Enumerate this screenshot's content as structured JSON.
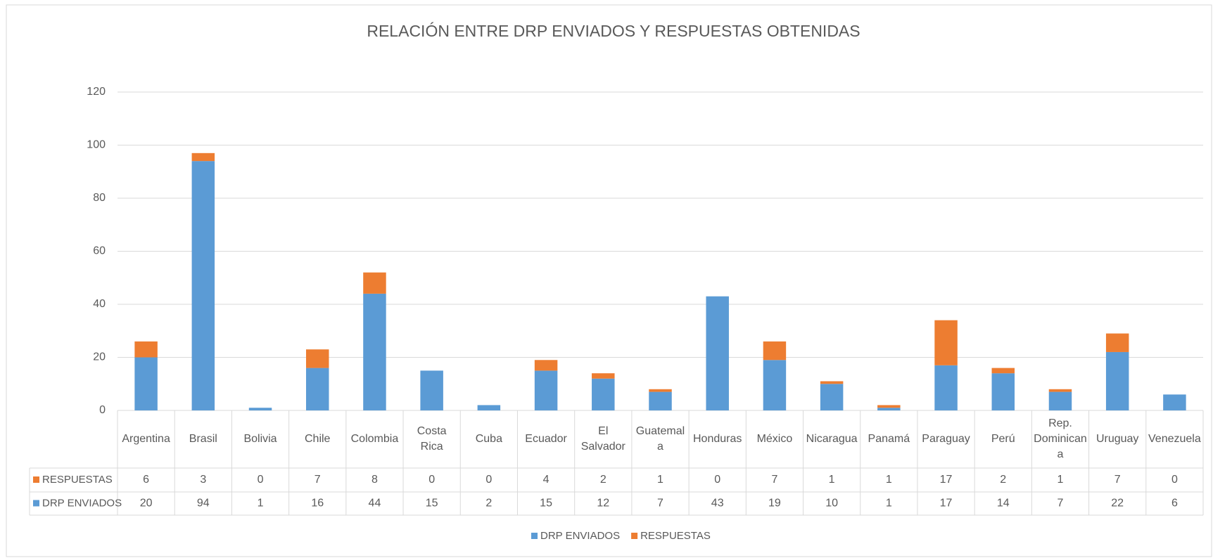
{
  "chart_data": {
    "type": "stacked_bar",
    "title": "RELACIÓN ENTRE DRP ENVIADOS Y RESPUESTAS OBTENIDAS",
    "categories": [
      "Argentina",
      "Brasil",
      "Bolivia",
      "Chile",
      "Colombia",
      "Costa Rica",
      "Cuba",
      "Ecuador",
      "El Salvador",
      "Guatemala",
      "Honduras",
      "México",
      "Nicaragua",
      "Panamá",
      "Paraguay",
      "Perú",
      "Rep. Dominicana",
      "Uruguay",
      "Venezuela"
    ],
    "series": [
      {
        "name": "DRP ENVIADOS",
        "color": "#5b9bd5",
        "values": [
          20,
          94,
          1,
          16,
          44,
          15,
          2,
          15,
          12,
          7,
          43,
          19,
          10,
          1,
          17,
          14,
          7,
          22,
          6
        ]
      },
      {
        "name": "RESPUESTAS",
        "color": "#ed7d31",
        "values": [
          6,
          3,
          0,
          7,
          8,
          0,
          0,
          4,
          2,
          1,
          0,
          7,
          1,
          1,
          17,
          2,
          1,
          7,
          0
        ]
      }
    ],
    "ylim": [
      0,
      120
    ],
    "yticks": [
      0,
      20,
      40,
      60,
      80,
      100,
      120
    ],
    "grid": true,
    "legend": "bottom"
  }
}
